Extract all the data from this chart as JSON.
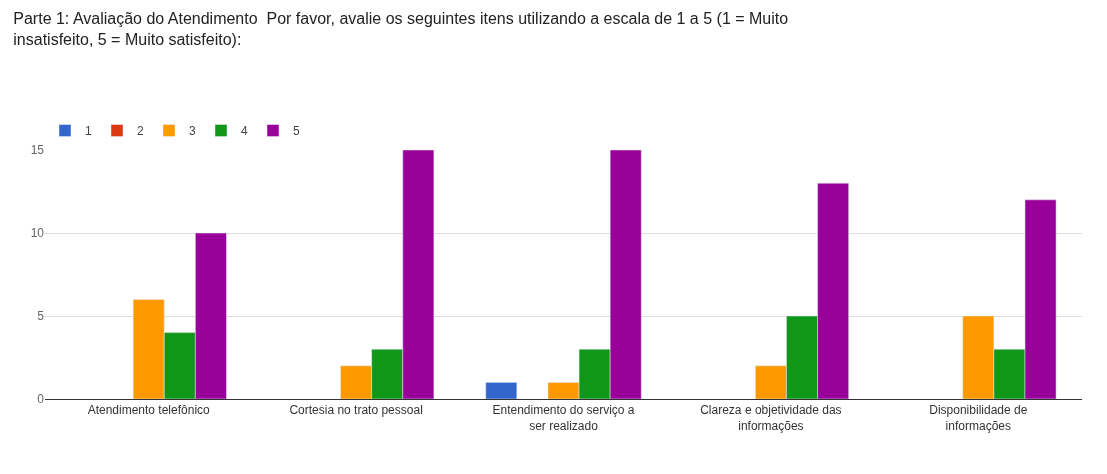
{
  "chart_data": {
    "type": "bar",
    "title": "Parte 1: Avaliação do Atendimento  Por favor, avalie os seguintes itens utilizando a escala de 1 a 5 (1 = Muito insatisfeito, 5 = Muito satisfeito):",
    "categories": [
      "Atendimento telefônico",
      "Cortesia no trato pessoal",
      "Entendimento do serviço a ser realizado",
      "Clareza e objetividade das informações",
      "Disponibilidade de informações"
    ],
    "series": [
      {
        "name": "1",
        "color": "#3366cc",
        "values": [
          null,
          null,
          1,
          null,
          null
        ]
      },
      {
        "name": "2",
        "color": "#dc3912",
        "values": [
          null,
          null,
          null,
          null,
          null
        ]
      },
      {
        "name": "3",
        "color": "#ff9900",
        "values": [
          6,
          2,
          1,
          2,
          5
        ]
      },
      {
        "name": "4",
        "color": "#109618",
        "values": [
          4,
          3,
          3,
          5,
          3
        ]
      },
      {
        "name": "5",
        "color": "#990099",
        "values": [
          10,
          15,
          15,
          13,
          12
        ]
      }
    ],
    "ylim": [
      0,
      15
    ],
    "yticks": [
      0,
      5,
      10,
      15
    ],
    "grid": "y",
    "legend": "top left"
  }
}
